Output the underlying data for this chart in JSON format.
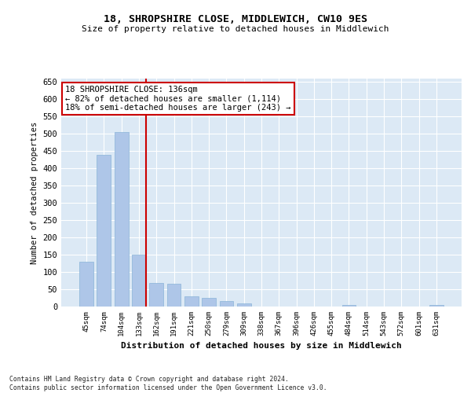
{
  "title1": "18, SHROPSHIRE CLOSE, MIDDLEWICH, CW10 9ES",
  "title2": "Size of property relative to detached houses in Middlewich",
  "xlabel": "Distribution of detached houses by size in Middlewich",
  "ylabel": "Number of detached properties",
  "footnote": "Contains HM Land Registry data © Crown copyright and database right 2024.\nContains public sector information licensed under the Open Government Licence v3.0.",
  "categories": [
    "45sqm",
    "74sqm",
    "104sqm",
    "133sqm",
    "162sqm",
    "191sqm",
    "221sqm",
    "250sqm",
    "279sqm",
    "309sqm",
    "338sqm",
    "367sqm",
    "396sqm",
    "426sqm",
    "455sqm",
    "484sqm",
    "514sqm",
    "543sqm",
    "572sqm",
    "601sqm",
    "631sqm"
  ],
  "values": [
    130,
    440,
    505,
    150,
    68,
    65,
    30,
    25,
    15,
    8,
    0,
    0,
    0,
    0,
    0,
    5,
    0,
    0,
    0,
    0,
    5
  ],
  "bar_color": "#aec6e8",
  "bar_edge_color": "#8ab4d8",
  "vline_x_index": 3,
  "vline_color": "#cc0000",
  "annotation_text": "18 SHROPSHIRE CLOSE: 136sqm\n← 82% of detached houses are smaller (1,114)\n18% of semi-detached houses are larger (243) →",
  "annotation_box_color": "#cc0000",
  "plot_bg_color": "#dce9f5",
  "ylim": [
    0,
    660
  ],
  "yticks": [
    0,
    50,
    100,
    150,
    200,
    250,
    300,
    350,
    400,
    450,
    500,
    550,
    600,
    650
  ]
}
